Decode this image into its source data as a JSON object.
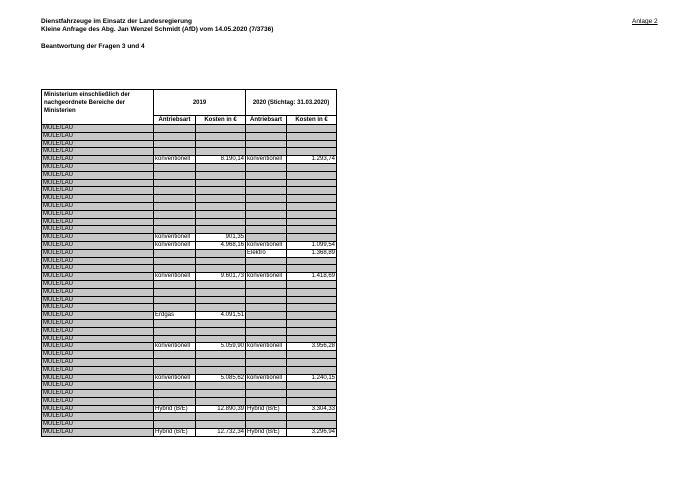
{
  "header": {
    "line1": "Dienstfahrzeuge im Einsatz der Landesregierung",
    "line2": "Kleine Anfrage des Abg. Jan Wenzel Schmidt (AfD) vom 14.05.2020 (7/3736)",
    "subtitle": "Beantwortung der Fragen 3 und 4",
    "attachment": "Anlage 2"
  },
  "table": {
    "ministry_header": "Ministerium einschließlich der nachgeordnete Bereiche der Ministerien",
    "year1": "2019",
    "year2": "2020 (Stichtag: 31.03.2020)",
    "subheaders": [
      "Antriebsart",
      "Kosten in €",
      "Antriebsart",
      "Kosten in €"
    ],
    "rows": [
      [
        "MULE/LAU",
        null,
        null,
        null,
        null
      ],
      [
        "MULE/LAU",
        null,
        null,
        null,
        null
      ],
      [
        "MULE/LAU",
        null,
        null,
        null,
        null
      ],
      [
        "MULE/LAU",
        null,
        null,
        null,
        null
      ],
      [
        "MULE/LAU",
        "konventionell",
        "8.190,14",
        "konventionell",
        "1.293,74"
      ],
      [
        "MULE/LAU",
        null,
        null,
        null,
        null
      ],
      [
        "MULE/LAU",
        null,
        null,
        null,
        null
      ],
      [
        "MULE/LAU",
        null,
        null,
        null,
        null
      ],
      [
        "MULE/LAU",
        null,
        null,
        null,
        null
      ],
      [
        "MULE/LAU",
        null,
        null,
        null,
        null
      ],
      [
        "MULE/LAU",
        null,
        null,
        null,
        null
      ],
      [
        "MULE/LAU",
        null,
        null,
        null,
        null
      ],
      [
        "MULE/LAU",
        null,
        null,
        null,
        null
      ],
      [
        "MULE/LAU",
        null,
        null,
        null,
        null
      ],
      [
        "MULE/LAU",
        "konventionell",
        "901,35",
        null,
        null
      ],
      [
        "MULE/LAU",
        "konventionell",
        "4.968,16",
        "konventionell",
        "1.099,54"
      ],
      [
        "MULE/LAU",
        null,
        null,
        "Elektro",
        "1.368,89"
      ],
      [
        "MULE/LAU",
        null,
        null,
        null,
        null
      ],
      [
        "MULE/LAU",
        null,
        null,
        null,
        null
      ],
      [
        "MULE/LAU",
        "konventionell",
        "9.601,73",
        "konventionell",
        "1.418,69"
      ],
      [
        "MULE/LAU",
        null,
        null,
        null,
        null
      ],
      [
        "MULE/LAU",
        null,
        null,
        null,
        null
      ],
      [
        "MULE/LAU",
        null,
        null,
        null,
        null
      ],
      [
        "MULE/LAU",
        null,
        null,
        null,
        null
      ],
      [
        "MULE/LAU",
        "Erdgas",
        "4.091,51",
        null,
        null
      ],
      [
        "MULE/LAU",
        null,
        null,
        null,
        null
      ],
      [
        "MULE/LAU",
        null,
        null,
        null,
        null
      ],
      [
        "MULE/LAU",
        null,
        null,
        null,
        null
      ],
      [
        "MULE/LAU",
        "konventionell",
        "5.059,90",
        "konventionell",
        "3.956,28"
      ],
      [
        "MULE/LAU",
        null,
        null,
        null,
        null
      ],
      [
        "MULE/LAU",
        null,
        null,
        null,
        null
      ],
      [
        "MULE/LAU",
        null,
        null,
        null,
        null
      ],
      [
        "MULE/LAU",
        "konventionell",
        "5.085,62",
        "konventionell",
        "1.240,15"
      ],
      [
        "MULE/LAU",
        null,
        null,
        null,
        null
      ],
      [
        "MULE/LAU",
        null,
        null,
        null,
        null
      ],
      [
        "MULE/LAU",
        null,
        null,
        null,
        null
      ],
      [
        "MULE/LAU",
        "Hybrid (B/E)",
        "12.890,39",
        "Hybrid (B/E)",
        "3.304,33"
      ],
      [
        "MULE/LAU",
        null,
        null,
        null,
        null
      ],
      [
        "MULE/LAU",
        null,
        null,
        null,
        null
      ],
      [
        "MULE/LAU",
        "Hybrid (B/E)",
        "12.732,34",
        "Hybrid (B/E)",
        "3.296,94"
      ]
    ]
  }
}
